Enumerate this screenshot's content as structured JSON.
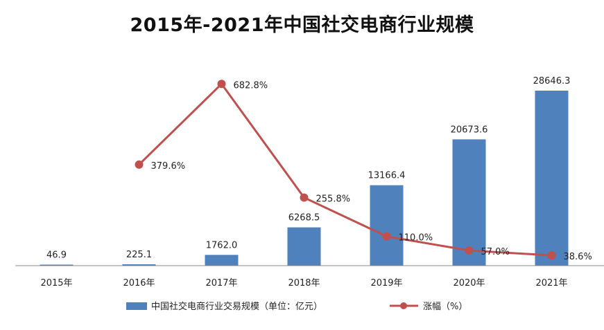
{
  "chart_data": {
    "type": "bar",
    "title": "2015年-2021年中国社交电商行业规模",
    "categories": [
      "2015年",
      "2016年",
      "2017年",
      "2018年",
      "2019年",
      "2020年",
      "2021年"
    ],
    "series": [
      {
        "name": "中国社交电商行业交易规模（单位：亿元）",
        "type": "bar",
        "values": [
          46.9,
          225.1,
          1762.0,
          6268.5,
          13166.4,
          20673.6,
          28646.3
        ],
        "labels": [
          "46.9",
          "225.1",
          "1762.0",
          "6268.5",
          "13166.4",
          "20673.6",
          "28646.3"
        ],
        "color": "#4f81bd"
      },
      {
        "name": "涨幅（%）",
        "type": "line",
        "values": [
          null,
          379.6,
          682.8,
          255.8,
          110.0,
          57.0,
          38.6
        ],
        "labels": [
          "",
          "379.6%",
          "682.8%",
          "255.8%",
          "110.0%",
          "57.0%",
          "38.6%"
        ],
        "color": "#c0504d"
      }
    ],
    "ylim_bar": [
      0,
      30000
    ],
    "ylim_line": [
      0,
      750
    ],
    "grid": false,
    "legend_position": "bottom"
  }
}
